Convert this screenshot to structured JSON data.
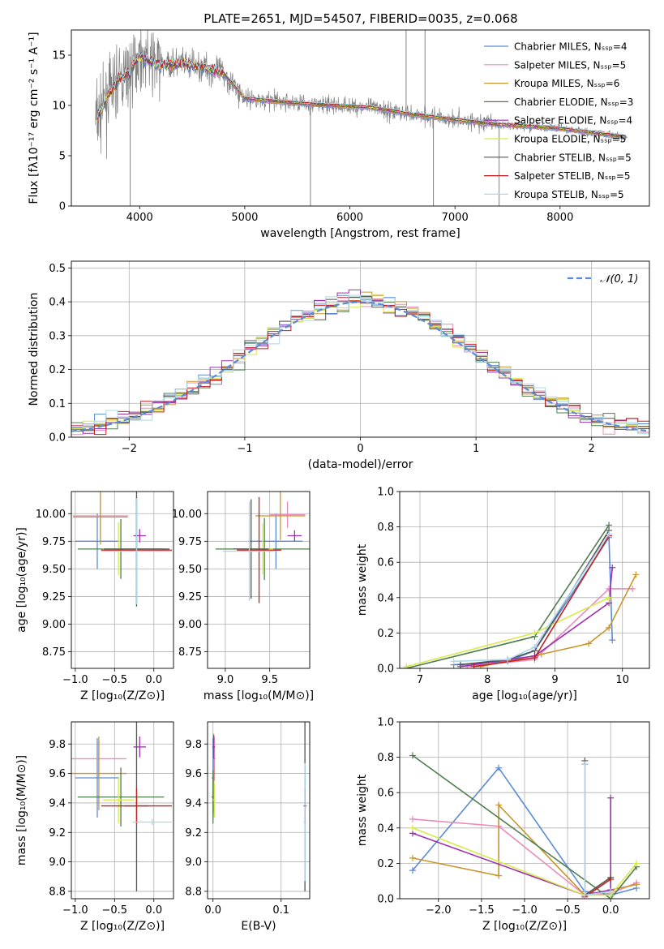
{
  "figure_title": "PLATE=2651, MJD=54507, FIBERID=0035, z=0.068",
  "series_colors": [
    "#5b8bd6",
    "#e98bbf",
    "#c8962a",
    "#4f7d4f",
    "#9b30b0",
    "#d7ea4a",
    "#555555",
    "#c41e1e",
    "#a9d8ec"
  ],
  "legend_labels": [
    "Chabrier MILES, Nₛₛₚ=4",
    "Salpeter MILES, Nₛₛₚ=5",
    "Kroupa MILES, Nₛₛₚ=6",
    "Chabrier ELODIE, Nₛₛₚ=3",
    "Salpeter ELODIE, Nₛₛₚ=4",
    "Kroupa ELODIE, Nₛₛₚ=5",
    "Chabrier STELIB, Nₛₛₚ=5",
    "Salpeter STELIB, Nₛₛₚ=5",
    "Kroupa STELIB, Nₛₛₚ=5"
  ],
  "chart_data": [
    {
      "id": "spectrum",
      "type": "line",
      "xlabel": "wavelength [Angstrom, rest frame]",
      "ylabel": "Flux [fλ10⁻¹⁷ erg cm⁻² s⁻¹ A⁻¹]",
      "xlim": [
        3350,
        8850
      ],
      "ylim": [
        0,
        17.5
      ],
      "xticks": [
        4000,
        5000,
        6000,
        7000,
        8000
      ],
      "yticks": [
        0,
        5,
        10,
        15
      ],
      "data_color": "#808080",
      "model_continuum": {
        "x": [
          3600,
          3700,
          3800,
          3900,
          4000,
          4100,
          4200,
          4400,
          4600,
          4800,
          5000,
          5400,
          5800,
          6200,
          6600,
          7000,
          7400,
          7600,
          8000,
          8300,
          8600
        ],
        "y": [
          8.8,
          11.0,
          12.5,
          13.3,
          15.0,
          14.4,
          14.0,
          14.2,
          13.8,
          13.2,
          10.7,
          10.3,
          10.0,
          9.8,
          9.1,
          8.6,
          8.1,
          8.0,
          7.7,
          7.3,
          6.9
        ]
      },
      "data_spikes": [
        {
          "x": 3910,
          "y_low": 0.0
        },
        {
          "x": 5625,
          "y_low": 0.0
        },
        {
          "x": 6795,
          "y_low": 0.0
        },
        {
          "x": 7420,
          "y_low": 0.0
        },
        {
          "x": 6535,
          "y_high": 17.5
        },
        {
          "x": 6715,
          "y_high": 17.5
        }
      ]
    },
    {
      "id": "residual_hist",
      "type": "histogram",
      "xlabel": "(data-model)/error",
      "ylabel": "Normed distribution",
      "xlim": [
        -2.5,
        2.5
      ],
      "ylim": [
        0,
        0.52
      ],
      "xticks": [
        -2,
        -1,
        0,
        1,
        2
      ],
      "yticks": [
        0.0,
        0.1,
        0.2,
        0.3,
        0.4,
        0.5
      ],
      "reference_curve": "𝒩(0, 1)",
      "bin_width": 0.1
    },
    {
      "id": "age_vs_Z",
      "type": "errorbar",
      "xlabel": "Z [log₁₀(Z/Z⊙)]",
      "ylabel": "age  [log₁₀(age/yr)]",
      "xlim": [
        -1.05,
        0.25
      ],
      "ylim": [
        8.6,
        10.2
      ],
      "xticks": [
        -1.0,
        -0.5,
        0.0
      ],
      "yticks": [
        8.75,
        9.0,
        9.25,
        9.5,
        9.75,
        10.0
      ],
      "points": [
        {
          "x": -0.72,
          "y": 9.75,
          "xerr": 0.28,
          "yerr": 0.25
        },
        {
          "x": -0.68,
          "y": 9.98,
          "xerr": 0.35,
          "yerr": 0.2
        },
        {
          "x": -0.68,
          "y": 9.97,
          "xerr": 0.35,
          "yerr": 0.25
        },
        {
          "x": -0.42,
          "y": 9.68,
          "xerr": 0.55,
          "yerr": 0.27
        },
        {
          "x": -0.18,
          "y": 9.8,
          "xerr": 0.08,
          "yerr": 0.06
        },
        {
          "x": -0.45,
          "y": 9.68,
          "xerr": 0.2,
          "yerr": 0.24
        },
        {
          "x": -0.22,
          "y": 9.68,
          "xerr": 0.42,
          "yerr": 0.52
        },
        {
          "x": -0.22,
          "y": 9.67,
          "xerr": 0.45,
          "yerr": 0.48
        },
        {
          "x": -0.22,
          "y": 9.66,
          "xerr": 0.45,
          "yerr": 0.48
        }
      ]
    },
    {
      "id": "age_vs_mass",
      "type": "errorbar",
      "xlabel": "mass [log₁₀(M/M⊙)]",
      "ylabel": "",
      "xlim": [
        8.8,
        9.95
      ],
      "ylim": [
        8.6,
        10.2
      ],
      "xticks": [
        9.0,
        9.5
      ],
      "yticks": [
        8.75,
        9.0,
        9.25,
        9.5,
        9.75,
        10.0
      ],
      "points": [
        {
          "x": 9.57,
          "y": 9.75,
          "xerr": 0.3,
          "yerr": 0.25
        },
        {
          "x": 9.7,
          "y": 9.99,
          "xerr": 0.2,
          "yerr": 0.12
        },
        {
          "x": 9.62,
          "y": 9.98,
          "xerr": 0.28,
          "yerr": 0.22
        },
        {
          "x": 9.44,
          "y": 9.68,
          "xerr": 0.55,
          "yerr": 0.28
        },
        {
          "x": 9.78,
          "y": 9.8,
          "xerr": 0.08,
          "yerr": 0.05
        },
        {
          "x": 9.42,
          "y": 9.68,
          "xerr": 0.12,
          "yerr": 0.23
        },
        {
          "x": 9.29,
          "y": 9.68,
          "xerr": 0.2,
          "yerr": 0.45
        },
        {
          "x": 9.38,
          "y": 9.67,
          "xerr": 0.25,
          "yerr": 0.48
        },
        {
          "x": 9.27,
          "y": 9.66,
          "xerr": 0.3,
          "yerr": 0.45
        }
      ]
    },
    {
      "id": "weight_vs_age",
      "type": "line",
      "xlabel": "age  [log₁₀(age/yr)]",
      "ylabel": "mass weight",
      "xlim": [
        6.7,
        10.4
      ],
      "ylim": [
        0,
        1.0
      ],
      "xticks": [
        7,
        8,
        9,
        10
      ],
      "yticks": [
        0.0,
        0.2,
        0.4,
        0.6,
        0.8,
        1.0
      ],
      "series": [
        {
          "x": [
            7.5,
            8.3,
            8.7,
            9.8,
            9.85
          ],
          "y": [
            0.02,
            0.04,
            0.1,
            0.74,
            0.16
          ]
        },
        {
          "x": [
            7.7,
            8.7,
            9.8,
            10.15
          ],
          "y": [
            0.01,
            0.05,
            0.45,
            0.45
          ]
        },
        {
          "x": [
            7.9,
            8.8,
            9.5,
            9.8,
            10.2
          ],
          "y": [
            0.01,
            0.08,
            0.14,
            0.23,
            0.53
          ]
        },
        {
          "x": [
            6.8,
            8.7,
            9.8
          ],
          "y": [
            0.0,
            0.18,
            0.81
          ]
        },
        {
          "x": [
            7.6,
            8.7,
            9.8,
            9.85
          ],
          "y": [
            0.01,
            0.07,
            0.37,
            0.57
          ]
        },
        {
          "x": [
            6.8,
            8.7,
            9.8,
            9.8
          ],
          "y": [
            0.01,
            0.2,
            0.4,
            0.39
          ]
        },
        {
          "x": [
            7.6,
            8.3,
            8.7,
            9.8
          ],
          "y": [
            0.02,
            0.05,
            0.1,
            0.78
          ]
        },
        {
          "x": [
            7.8,
            8.7,
            9.8
          ],
          "y": [
            0.01,
            0.06,
            0.75
          ]
        },
        {
          "x": [
            7.5,
            8.3,
            8.7,
            9.8
          ],
          "y": [
            0.04,
            0.05,
            0.12,
            0.76
          ]
        }
      ]
    },
    {
      "id": "mass_vs_Z",
      "type": "errorbar",
      "xlabel": "Z [log₁₀(Z/Z⊙)]",
      "ylabel": "mass [log₁₀(M/M⊙)]",
      "xlim": [
        -1.05,
        0.25
      ],
      "ylim": [
        8.75,
        9.95
      ],
      "xticks": [
        -1.0,
        -0.5,
        0.0
      ],
      "yticks": [
        8.8,
        9.0,
        9.2,
        9.4,
        9.6,
        9.8
      ],
      "points": [
        {
          "x": -0.72,
          "y": 9.57,
          "xerr": 0.28,
          "yerr": 0.27
        },
        {
          "x": -0.7,
          "y": 9.7,
          "xerr": 0.35,
          "yerr": 0.12
        },
        {
          "x": -0.7,
          "y": 9.6,
          "xerr": 0.35,
          "yerr": 0.25
        },
        {
          "x": -0.42,
          "y": 9.44,
          "xerr": 0.55,
          "yerr": 0.2
        },
        {
          "x": -0.18,
          "y": 9.78,
          "xerr": 0.08,
          "yerr": 0.07
        },
        {
          "x": -0.45,
          "y": 9.42,
          "xerr": 0.2,
          "yerr": 0.16
        },
        {
          "x": -0.22,
          "y": 9.38,
          "xerr": 0.15,
          "yerr": 0.58
        },
        {
          "x": -0.22,
          "y": 9.38,
          "xerr": 0.45,
          "yerr": 0.12
        },
        {
          "x": -0.02,
          "y": 9.27,
          "xerr": 0.25,
          "yerr": 0.02
        }
      ]
    },
    {
      "id": "mass_vs_EBV",
      "type": "errorbar",
      "xlabel": "E(B-V)",
      "ylabel": "",
      "xlim": [
        -0.008,
        0.142
      ],
      "ylim": [
        8.75,
        9.95
      ],
      "xticks": [
        0.0,
        0.1
      ],
      "yticks": [
        8.8,
        9.0,
        9.2,
        9.4,
        9.6,
        9.8
      ],
      "points": [
        {
          "x": 0.0,
          "y": 9.57,
          "xerr": 0.002,
          "yerr": 0.27
        },
        {
          "x": 0.002,
          "y": 9.7,
          "xerr": 0.002,
          "yerr": 0.15
        },
        {
          "x": 0.001,
          "y": 9.6,
          "xerr": 0.002,
          "yerr": 0.27
        },
        {
          "x": 0.0,
          "y": 9.44,
          "xerr": 0.002,
          "yerr": 0.18
        },
        {
          "x": 0.001,
          "y": 9.78,
          "xerr": 0.002,
          "yerr": 0.08
        },
        {
          "x": 0.002,
          "y": 9.42,
          "xerr": 0.002,
          "yerr": 0.12
        },
        {
          "x": 0.135,
          "y": 9.38,
          "xerr": 0.002,
          "yerr": 0.58
        },
        {
          "x": 0.135,
          "y": 9.38,
          "xerr": 0.002,
          "yerr": 0.12
        },
        {
          "x": 0.135,
          "y": 9.27,
          "xerr": 0.002,
          "yerr": 0.4
        }
      ]
    },
    {
      "id": "weight_vs_Z",
      "type": "line",
      "xlabel": "Z [log₁₀(Z/Z⊙)]",
      "ylabel": "mass weight",
      "xlim": [
        -2.45,
        0.45
      ],
      "ylim": [
        0,
        1.0
      ],
      "xticks": [
        -2.0,
        -1.5,
        -1.0,
        -0.5,
        0.0
      ],
      "yticks": [
        0.0,
        0.2,
        0.4,
        0.6,
        0.8,
        1.0
      ],
      "series": [
        {
          "x": [
            -2.3,
            -1.3,
            -0.3,
            0.0,
            0.3
          ],
          "y": [
            0.16,
            0.74,
            0.04,
            0.02,
            0.06
          ]
        },
        {
          "x": [
            -2.3,
            -1.3,
            -0.3,
            0.0,
            0.3
          ],
          "y": [
            0.45,
            0.41,
            0.02,
            0.03,
            0.09
          ]
        },
        {
          "x": [
            -2.3,
            -1.3,
            -1.3,
            -0.3,
            0.0,
            0.3
          ],
          "y": [
            0.23,
            0.13,
            0.53,
            0.02,
            0.05,
            0.08
          ]
        },
        {
          "x": [
            -2.3,
            0.0,
            0.3
          ],
          "y": [
            0.81,
            0.0,
            0.18
          ]
        },
        {
          "x": [
            -2.3,
            -0.3,
            0.0,
            0.0
          ],
          "y": [
            0.37,
            0.02,
            0.05,
            0.57
          ]
        },
        {
          "x": [
            -2.3,
            -0.3,
            0.0,
            0.3
          ],
          "y": [
            0.4,
            0.02,
            0.02,
            0.2
          ]
        },
        {
          "x": [
            -0.3,
            -0.3,
            0.0
          ],
          "y": [
            0.78,
            0.02,
            0.12
          ]
        },
        {
          "x": [
            -0.3,
            -0.3,
            0.0
          ],
          "y": [
            0.76,
            0.01,
            0.11
          ]
        },
        {
          "x": [
            -0.3,
            -0.3,
            0.0
          ],
          "y": [
            0.76,
            0.02,
            0.04
          ]
        }
      ]
    }
  ]
}
